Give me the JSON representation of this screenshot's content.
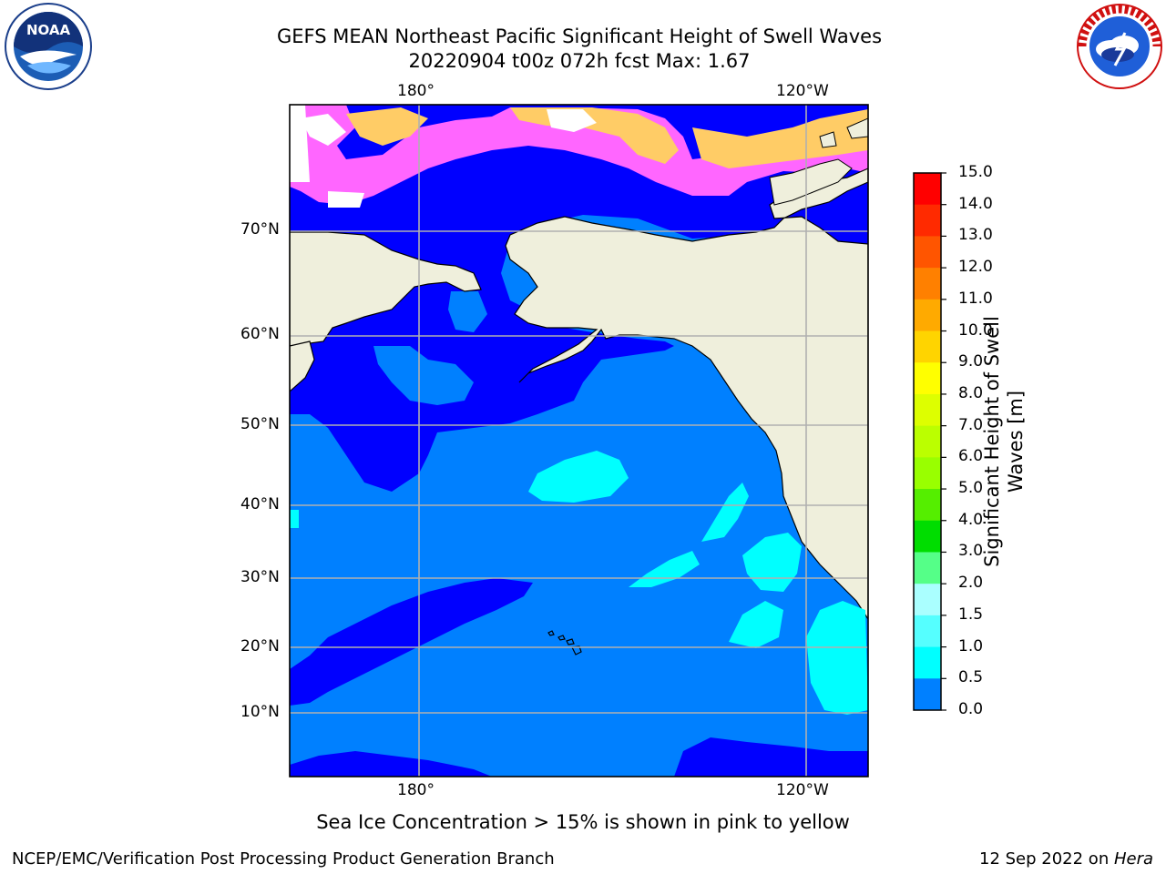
{
  "header": {
    "title_line1": "GEFS MEAN Northeast Pacific Significant Height of Swell Waves",
    "title_line2": "20220904 t00z 072h fcst   Max: 1.67"
  },
  "logos": {
    "left": {
      "icon": "noaa-logo-icon",
      "text": "NOAA",
      "ring_text": "NATIONAL OCEANIC AND ATMOSPHERIC ADMINISTRATION · U.S. DEPARTMENT OF COMMERCE"
    },
    "right": {
      "icon": "nws-logo-icon",
      "ring_text": "NATIONAL WEATHER SERVICE"
    }
  },
  "map": {
    "lon_labels": [
      "180°",
      "120°W"
    ],
    "lat_labels": [
      "70°N",
      "60°N",
      "50°N",
      "40°N",
      "30°N",
      "20°N",
      "10°N"
    ],
    "colors": {
      "ocean_0_0.5": "#0000ff",
      "ocean_0.5_1.0": "#0080ff",
      "ocean_1.0_1.5": "#00ffff",
      "land": "#efefdc",
      "ice": "#ff66ff",
      "ice_edge": "#ffcc66"
    }
  },
  "colorbar": {
    "label": "Significant Height of Swell Waves [m]",
    "label_line1": "Significant Height of Swell",
    "label_line2": "Waves [m]",
    "ticks": [
      "15.0",
      "14.0",
      "13.0",
      "12.0",
      "11.0",
      "10.0",
      "9.0",
      "8.0",
      "7.0",
      "6.0",
      "5.0",
      "4.0",
      "3.0",
      "2.0",
      "1.5",
      "1.0",
      "0.5",
      "0.0"
    ],
    "colors": [
      "#ff0000",
      "#ff2a00",
      "#ff5500",
      "#ff8000",
      "#ffaa00",
      "#ffd400",
      "#ffff00",
      "#ddff00",
      "#bbff00",
      "#99ff00",
      "#55ee00",
      "#00dd00",
      "#55ff88",
      "#aaffff",
      "#55ffff",
      "#00ffff",
      "#0080ff",
      "#0000ff"
    ]
  },
  "caption": "Sea Ice Concentration > 15% is shown in pink to yellow",
  "footer": {
    "left": "NCEP/EMC/Verification Post Processing Product Generation Branch",
    "right_date": "12 Sep 2022 on ",
    "right_host": "Hera"
  }
}
